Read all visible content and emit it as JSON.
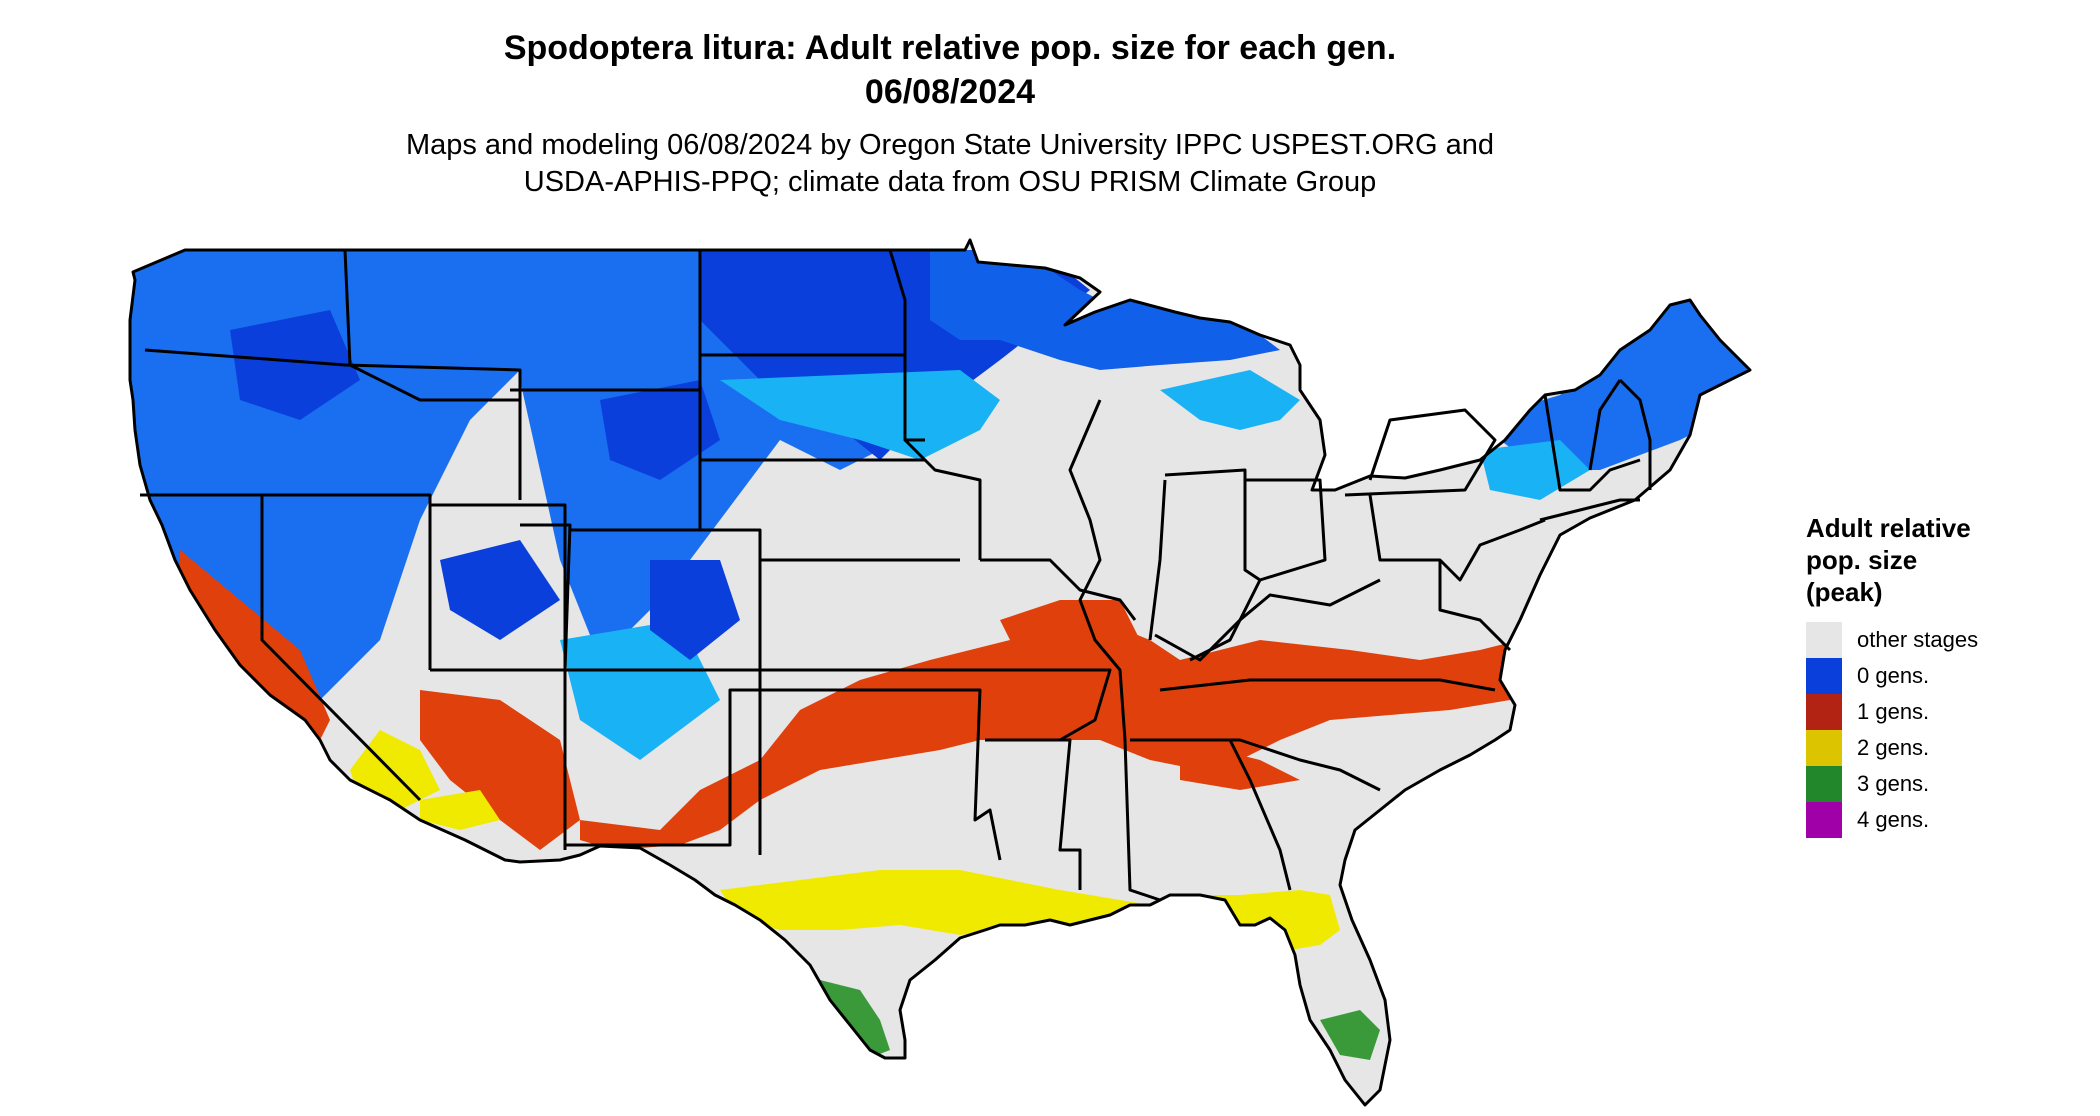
{
  "header": {
    "title_line1": "Spodoptera litura: Adult relative pop. size for each gen.",
    "title_line2": "06/08/2024",
    "subtitle_line1": "Maps and modeling 06/08/2024 by Oregon State University IPPC USPEST.ORG and",
    "subtitle_line2": "USDA-APHIS-PPQ; climate data from OSU PRISM Climate Group"
  },
  "legend": {
    "title_line1": "Adult relative",
    "title_line2": "pop. size",
    "title_line3": "(peak)",
    "items": [
      {
        "label": "other stages",
        "color": "#e6e6e6"
      },
      {
        "label": "0 gens.",
        "color": "#0a3fdc"
      },
      {
        "label": "1 gens.",
        "color": "#b22313"
      },
      {
        "label": "2 gens.",
        "color": "#dcc400"
      },
      {
        "label": "3 gens.",
        "color": "#22862a"
      },
      {
        "label": "4 gens.",
        "color": "#a000a8"
      }
    ]
  },
  "map": {
    "region": "contiguous-us",
    "background_color": "#e6e6e6",
    "border_color": "#000000",
    "zone_colors": {
      "cold_deep": "#0a3fdc",
      "cold_mid": "#1a6ff0",
      "cold_light": "#19b2f5",
      "one_gen": "#e0400c",
      "two_gen": "#f0ea00",
      "three_gen": "#3a9a3a"
    }
  }
}
